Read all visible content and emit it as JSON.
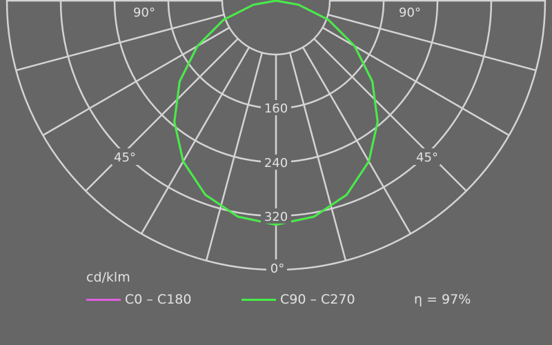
{
  "chart_data": {
    "type": "polar",
    "unit_label": "cd/klm",
    "radial_range": [
      0,
      400
    ],
    "radial_rings": [
      80,
      160,
      240,
      320,
      400
    ],
    "radial_tick_labels": [
      "160",
      "240",
      "320"
    ],
    "angle_step_deg": 15,
    "angle_labels": {
      "bottom": "0°",
      "left_45": "45°",
      "right_45": "45°",
      "left_90": "90°",
      "right_90": "90°"
    },
    "grid": true,
    "angles_deg": [
      0,
      10,
      20,
      30,
      40,
      50,
      60,
      70,
      80,
      90
    ],
    "series": [
      {
        "name": "C0 – C180",
        "color": "#e060e0",
        "values": [
          333,
          326,
          307,
          276,
          235,
          187,
          135,
          83,
          34,
          0
        ]
      },
      {
        "name": "C90 – C270",
        "color": "#44ee44",
        "values": [
          333,
          326,
          307,
          276,
          235,
          187,
          135,
          83,
          34,
          0
        ]
      }
    ],
    "efficiency": "η = 97%",
    "legend_placement": "bottom"
  },
  "colors": {
    "background": "#666666",
    "grid": "#d4d4d4",
    "text": "#e2e2e2"
  }
}
